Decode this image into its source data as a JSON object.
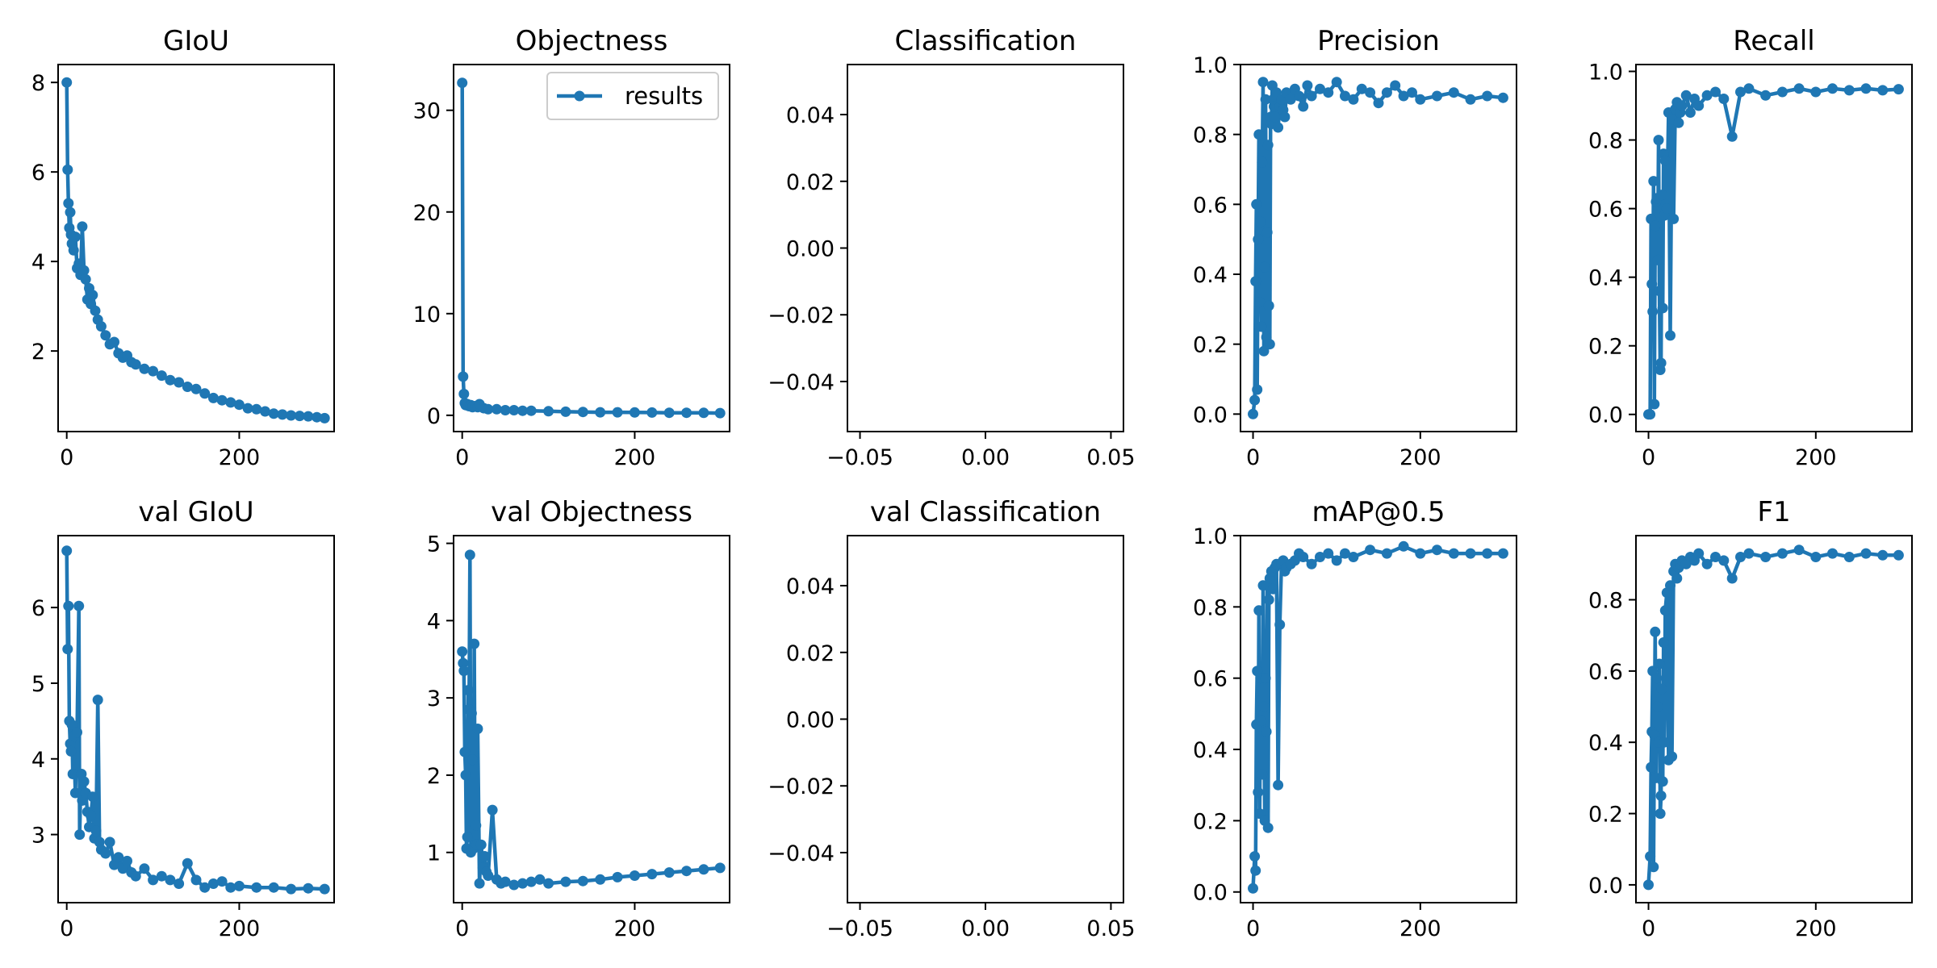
{
  "colors": {
    "series": "#1f77b4",
    "axis": "#000000",
    "background": "#ffffff",
    "legend_border": "#cccccc"
  },
  "legend": {
    "label": "results",
    "panel": "Objectness",
    "placement": "upper right"
  },
  "chart_data": [
    {
      "id": "giou",
      "title": "GIoU",
      "type": "line",
      "markers": true,
      "xlim": [
        -10,
        310
      ],
      "ylim": [
        0.2,
        8.4
      ],
      "xticks": [
        0,
        200
      ],
      "xtick_labels": [
        "0",
        "200"
      ],
      "yticks": [
        2,
        4,
        6,
        8
      ],
      "ytick_labels": [
        "2",
        "4",
        "6",
        "8"
      ],
      "series": [
        {
          "x": [
            0,
            1,
            2,
            3,
            4,
            5,
            6,
            8,
            10,
            12,
            14,
            16,
            18,
            20,
            22,
            24,
            26,
            28,
            30,
            33,
            36,
            40,
            45,
            50,
            55,
            60,
            65,
            70,
            75,
            80,
            90,
            100,
            110,
            120,
            130,
            140,
            150,
            160,
            170,
            180,
            190,
            200,
            210,
            220,
            230,
            240,
            250,
            260,
            270,
            280,
            290,
            299
          ],
          "y": [
            8.0,
            6.05,
            5.3,
            4.75,
            5.1,
            4.6,
            4.4,
            4.25,
            4.55,
            3.85,
            3.95,
            3.7,
            4.78,
            3.8,
            3.6,
            3.15,
            3.4,
            3.05,
            3.25,
            2.9,
            2.7,
            2.55,
            2.35,
            2.15,
            2.2,
            1.95,
            1.85,
            1.9,
            1.75,
            1.7,
            1.6,
            1.55,
            1.45,
            1.35,
            1.3,
            1.2,
            1.15,
            1.05,
            0.95,
            0.9,
            0.85,
            0.8,
            0.72,
            0.7,
            0.65,
            0.6,
            0.58,
            0.56,
            0.55,
            0.54,
            0.52,
            0.5
          ]
        }
      ]
    },
    {
      "id": "objectness",
      "title": "Objectness",
      "type": "line",
      "markers": true,
      "xlim": [
        -10,
        310
      ],
      "ylim": [
        -1.6,
        34.5
      ],
      "xticks": [
        0,
        200
      ],
      "xtick_labels": [
        "0",
        "200"
      ],
      "yticks": [
        0,
        10,
        20,
        30
      ],
      "ytick_labels": [
        "0",
        "10",
        "20",
        "30"
      ],
      "series": [
        {
          "name": "results",
          "x": [
            0,
            1,
            2,
            3,
            4,
            6,
            8,
            10,
            12,
            15,
            18,
            20,
            25,
            30,
            40,
            50,
            60,
            70,
            80,
            100,
            120,
            140,
            160,
            180,
            200,
            220,
            240,
            260,
            280,
            299
          ],
          "y": [
            32.7,
            3.8,
            2.1,
            1.2,
            1.0,
            1.1,
            0.9,
            1.0,
            0.8,
            0.9,
            0.8,
            1.1,
            0.7,
            0.6,
            0.6,
            0.5,
            0.5,
            0.45,
            0.45,
            0.4,
            0.35,
            0.33,
            0.3,
            0.3,
            0.28,
            0.27,
            0.25,
            0.25,
            0.24,
            0.22
          ]
        }
      ]
    },
    {
      "id": "classification",
      "title": "Classification",
      "type": "line",
      "markers": true,
      "xlim": [
        -0.055,
        0.055
      ],
      "ylim": [
        -0.055,
        0.055
      ],
      "xticks": [
        -0.05,
        0.0,
        0.05
      ],
      "xtick_labels": [
        "−0.05",
        "0.00",
        "0.05"
      ],
      "yticks": [
        -0.04,
        -0.02,
        0.0,
        0.02,
        0.04
      ],
      "ytick_labels": [
        "−0.04",
        "−0.02",
        "0.00",
        "0.02",
        "0.04"
      ],
      "series": [
        {
          "x": [],
          "y": []
        }
      ]
    },
    {
      "id": "precision",
      "title": "Precision",
      "type": "line",
      "markers": true,
      "xlim": [
        -15,
        315
      ],
      "ylim": [
        -0.05,
        1.0
      ],
      "xticks": [
        0,
        200
      ],
      "xtick_labels": [
        "0",
        "200"
      ],
      "yticks": [
        0.0,
        0.2,
        0.4,
        0.6,
        0.8,
        1.0
      ],
      "ytick_labels": [
        "0.0",
        "0.2",
        "0.4",
        "0.6",
        "0.8",
        "1.0"
      ],
      "series": [
        {
          "x": [
            0,
            2,
            3,
            4,
            5,
            6,
            7,
            8,
            9,
            10,
            11,
            12,
            13,
            14,
            15,
            16,
            17,
            18,
            19,
            20,
            21,
            22,
            23,
            24,
            25,
            26,
            28,
            30,
            32,
            34,
            36,
            38,
            40,
            45,
            50,
            55,
            60,
            65,
            70,
            80,
            90,
            100,
            110,
            120,
            130,
            140,
            150,
            160,
            170,
            180,
            190,
            200,
            220,
            240,
            260,
            280,
            299
          ],
          "y": [
            0.0,
            0.04,
            0.38,
            0.6,
            0.07,
            0.5,
            0.8,
            0.32,
            0.55,
            0.25,
            0.72,
            0.95,
            0.18,
            0.42,
            0.9,
            0.22,
            0.52,
            0.77,
            0.31,
            0.2,
            0.85,
            0.83,
            0.94,
            0.9,
            0.88,
            0.85,
            0.92,
            0.82,
            0.88,
            0.9,
            0.87,
            0.85,
            0.92,
            0.9,
            0.93,
            0.91,
            0.88,
            0.94,
            0.91,
            0.93,
            0.92,
            0.95,
            0.91,
            0.9,
            0.93,
            0.92,
            0.89,
            0.92,
            0.94,
            0.91,
            0.92,
            0.9,
            0.91,
            0.92,
            0.9,
            0.91,
            0.905
          ]
        }
      ]
    },
    {
      "id": "recall",
      "title": "Recall",
      "type": "line",
      "markers": true,
      "xlim": [
        -15,
        315
      ],
      "ylim": [
        -0.05,
        1.02
      ],
      "xticks": [
        0,
        200
      ],
      "xtick_labels": [
        "0",
        "200"
      ],
      "yticks": [
        0.0,
        0.2,
        0.4,
        0.6,
        0.8,
        1.0
      ],
      "ytick_labels": [
        "0.0",
        "0.2",
        "0.4",
        "0.6",
        "0.8",
        "1.0"
      ],
      "series": [
        {
          "x": [
            0,
            2,
            3,
            4,
            5,
            6,
            7,
            8,
            9,
            10,
            11,
            12,
            13,
            14,
            15,
            16,
            17,
            18,
            19,
            20,
            22,
            24,
            26,
            28,
            30,
            32,
            34,
            36,
            38,
            40,
            45,
            50,
            55,
            60,
            70,
            80,
            90,
            100,
            110,
            120,
            140,
            160,
            180,
            200,
            220,
            240,
            260,
            280,
            299
          ],
          "y": [
            0.0,
            0.0,
            0.57,
            0.38,
            0.3,
            0.68,
            0.03,
            0.55,
            0.62,
            0.63,
            0.45,
            0.8,
            0.36,
            0.13,
            0.15,
            0.64,
            0.31,
            0.76,
            0.58,
            0.74,
            0.6,
            0.88,
            0.23,
            0.86,
            0.57,
            0.89,
            0.91,
            0.85,
            0.88,
            0.9,
            0.93,
            0.88,
            0.92,
            0.9,
            0.93,
            0.94,
            0.92,
            0.81,
            0.94,
            0.95,
            0.93,
            0.94,
            0.95,
            0.94,
            0.95,
            0.945,
            0.95,
            0.945,
            0.948
          ]
        }
      ]
    },
    {
      "id": "val_giou",
      "title": "val GIoU",
      "type": "line",
      "markers": true,
      "xlim": [
        -10,
        310
      ],
      "ylim": [
        2.1,
        6.95
      ],
      "xticks": [
        0,
        200
      ],
      "xtick_labels": [
        "0",
        "200"
      ],
      "yticks": [
        3,
        4,
        5,
        6
      ],
      "ytick_labels": [
        "3",
        "4",
        "5",
        "6"
      ],
      "series": [
        {
          "x": [
            0,
            1,
            2,
            3,
            4,
            5,
            6,
            7,
            8,
            10,
            12,
            14,
            15,
            16,
            17,
            18,
            20,
            22,
            24,
            26,
            28,
            30,
            32,
            34,
            36,
            38,
            40,
            45,
            50,
            55,
            60,
            65,
            70,
            75,
            80,
            90,
            100,
            110,
            120,
            130,
            140,
            150,
            160,
            170,
            180,
            190,
            200,
            220,
            240,
            260,
            280,
            299
          ],
          "y": [
            6.75,
            5.45,
            6.02,
            4.5,
            4.2,
            4.1,
            4.45,
            3.8,
            4.3,
            3.55,
            4.35,
            6.02,
            3.0,
            3.55,
            3.8,
            3.45,
            3.7,
            3.55,
            3.3,
            3.1,
            3.25,
            3.5,
            2.95,
            3.05,
            4.78,
            2.9,
            2.8,
            2.75,
            2.9,
            2.6,
            2.7,
            2.55,
            2.65,
            2.5,
            2.45,
            2.55,
            2.4,
            2.45,
            2.4,
            2.35,
            2.62,
            2.4,
            2.3,
            2.35,
            2.38,
            2.3,
            2.32,
            2.3,
            2.3,
            2.28,
            2.29,
            2.28
          ]
        }
      ]
    },
    {
      "id": "val_objectness",
      "title": "val Objectness",
      "type": "line",
      "markers": true,
      "xlim": [
        -10,
        310
      ],
      "ylim": [
        0.35,
        5.1
      ],
      "xticks": [
        0,
        200
      ],
      "xtick_labels": [
        "0",
        "200"
      ],
      "yticks": [
        1,
        2,
        3,
        4,
        5
      ],
      "ytick_labels": [
        "1",
        "2",
        "3",
        "4",
        "5"
      ],
      "series": [
        {
          "x": [
            0,
            1,
            2,
            3,
            4,
            5,
            6,
            7,
            8,
            9,
            10,
            11,
            12,
            13,
            14,
            15,
            16,
            17,
            18,
            20,
            22,
            24,
            26,
            28,
            30,
            35,
            40,
            45,
            50,
            60,
            70,
            80,
            90,
            100,
            120,
            140,
            160,
            180,
            200,
            220,
            240,
            260,
            280,
            299
          ],
          "y": [
            3.6,
            3.45,
            3.35,
            2.3,
            2.0,
            1.05,
            1.2,
            3.1,
            2.85,
            4.85,
            1.0,
            2.8,
            2.2,
            1.05,
            3.7,
            1.1,
            1.35,
            1.1,
            2.6,
            0.6,
            1.1,
            0.8,
            0.95,
            0.75,
            0.7,
            1.55,
            0.65,
            0.6,
            0.62,
            0.58,
            0.6,
            0.62,
            0.65,
            0.6,
            0.62,
            0.63,
            0.65,
            0.68,
            0.7,
            0.72,
            0.74,
            0.76,
            0.78,
            0.8
          ]
        }
      ]
    },
    {
      "id": "val_classification",
      "title": "val Classification",
      "type": "line",
      "markers": true,
      "xlim": [
        -0.055,
        0.055
      ],
      "ylim": [
        -0.055,
        0.055
      ],
      "xticks": [
        -0.05,
        0.0,
        0.05
      ],
      "xtick_labels": [
        "−0.05",
        "0.00",
        "0.05"
      ],
      "yticks": [
        -0.04,
        -0.02,
        0.0,
        0.02,
        0.04
      ],
      "ytick_labels": [
        "−0.04",
        "−0.02",
        "0.00",
        "0.02",
        "0.04"
      ],
      "series": [
        {
          "x": [],
          "y": []
        }
      ]
    },
    {
      "id": "map05",
      "title": "mAP@0.5",
      "type": "line",
      "markers": true,
      "xlim": [
        -15,
        315
      ],
      "ylim": [
        -0.03,
        1.0
      ],
      "xticks": [
        0,
        200
      ],
      "xtick_labels": [
        "0",
        "200"
      ],
      "yticks": [
        0.0,
        0.2,
        0.4,
        0.6,
        0.8,
        1.0
      ],
      "ytick_labels": [
        "0.0",
        "0.2",
        "0.4",
        "0.6",
        "0.8",
        "1.0"
      ],
      "series": [
        {
          "x": [
            0,
            2,
            3,
            4,
            5,
            6,
            7,
            8,
            9,
            10,
            11,
            12,
            13,
            14,
            15,
            16,
            17,
            18,
            19,
            20,
            22,
            24,
            26,
            28,
            30,
            32,
            34,
            36,
            38,
            40,
            45,
            50,
            55,
            60,
            70,
            80,
            90,
            100,
            110,
            120,
            140,
            160,
            180,
            200,
            220,
            240,
            260,
            280,
            299
          ],
          "y": [
            0.01,
            0.1,
            0.06,
            0.47,
            0.62,
            0.28,
            0.79,
            0.22,
            0.6,
            0.48,
            0.33,
            0.86,
            0.52,
            0.2,
            0.6,
            0.45,
            0.86,
            0.18,
            0.82,
            0.88,
            0.9,
            0.85,
            0.91,
            0.92,
            0.3,
            0.75,
            0.92,
            0.93,
            0.9,
            0.91,
            0.92,
            0.93,
            0.95,
            0.94,
            0.92,
            0.94,
            0.95,
            0.93,
            0.95,
            0.94,
            0.96,
            0.95,
            0.97,
            0.95,
            0.96,
            0.95,
            0.95,
            0.95,
            0.95
          ]
        }
      ]
    },
    {
      "id": "f1",
      "title": "F1",
      "type": "line",
      "markers": true,
      "xlim": [
        -15,
        315
      ],
      "ylim": [
        -0.05,
        0.98
      ],
      "xticks": [
        0,
        200
      ],
      "xtick_labels": [
        "0",
        "200"
      ],
      "yticks": [
        0.0,
        0.2,
        0.4,
        0.6,
        0.8
      ],
      "ytick_labels": [
        "0.0",
        "0.2",
        "0.4",
        "0.6",
        "0.8"
      ],
      "series": [
        {
          "x": [
            0,
            2,
            3,
            4,
            5,
            6,
            7,
            8,
            9,
            10,
            11,
            12,
            13,
            14,
            15,
            16,
            17,
            18,
            19,
            20,
            22,
            24,
            26,
            28,
            30,
            32,
            34,
            36,
            38,
            40,
            45,
            50,
            55,
            60,
            70,
            80,
            90,
            100,
            110,
            120,
            140,
            160,
            180,
            200,
            220,
            240,
            260,
            280,
            299
          ],
          "y": [
            0.0,
            0.08,
            0.33,
            0.43,
            0.6,
            0.05,
            0.42,
            0.71,
            0.3,
            0.58,
            0.5,
            0.4,
            0.62,
            0.2,
            0.25,
            0.55,
            0.29,
            0.68,
            0.4,
            0.77,
            0.82,
            0.35,
            0.84,
            0.36,
            0.88,
            0.9,
            0.86,
            0.89,
            0.9,
            0.91,
            0.9,
            0.92,
            0.91,
            0.93,
            0.9,
            0.92,
            0.91,
            0.86,
            0.92,
            0.93,
            0.92,
            0.93,
            0.94,
            0.92,
            0.93,
            0.92,
            0.93,
            0.925,
            0.925
          ]
        }
      ]
    }
  ]
}
